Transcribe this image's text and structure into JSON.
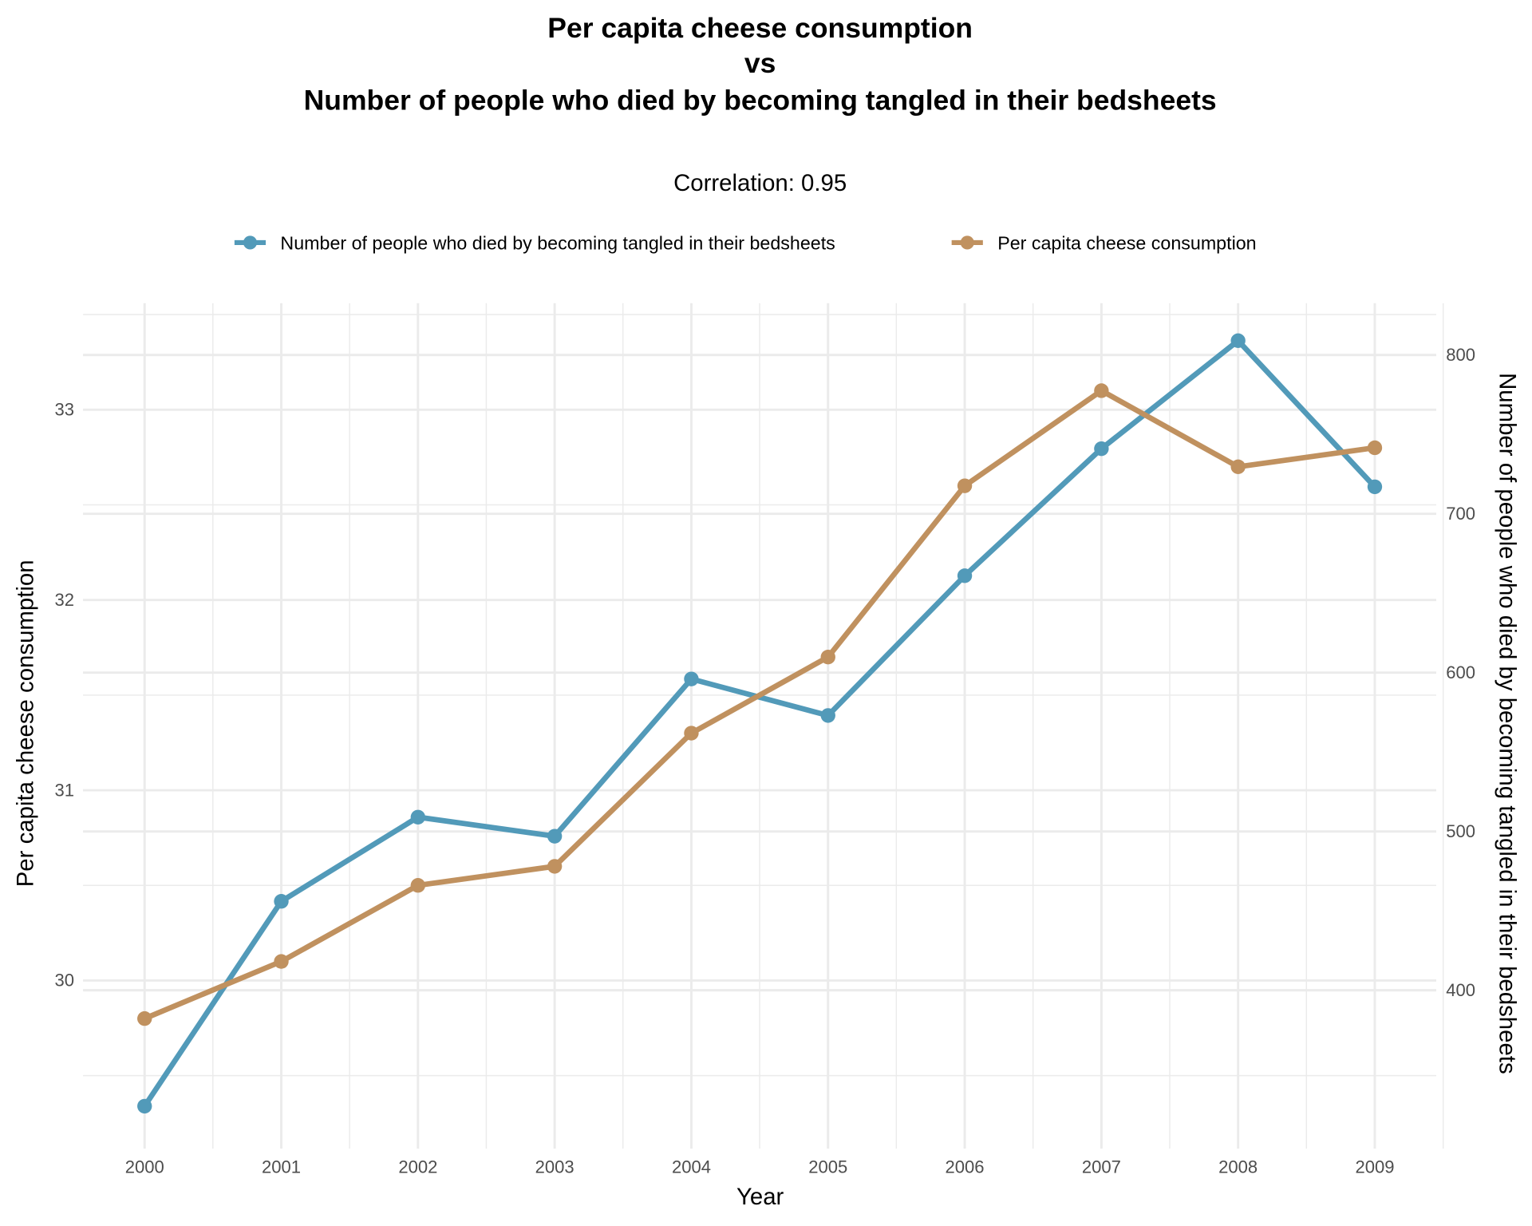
{
  "chart_data": {
    "type": "line",
    "title_lines": [
      "Per capita cheese consumption",
      "vs",
      "Number of people who died by becoming tangled in their bedsheets"
    ],
    "subtitle": "Correlation: 0.95",
    "xlabel": "Year",
    "ylabel_left": "Per capita cheese consumption",
    "ylabel_right": "Number of people who died by becoming tangled in their bedsheets",
    "x": [
      2000,
      2001,
      2002,
      2003,
      2004,
      2005,
      2006,
      2007,
      2008,
      2009
    ],
    "x_tick_labels": [
      "2000",
      "2001",
      "2002",
      "2003",
      "2004",
      "2005",
      "2006",
      "2007",
      "2008",
      "2009"
    ],
    "left_ticks": [
      "30",
      "31",
      "32",
      "33"
    ],
    "right_ticks": [
      "400",
      "500",
      "600",
      "700",
      "800"
    ],
    "ylim_left": [
      29.35,
      33.55
    ],
    "ylim_right": [
      293,
      830
    ],
    "grid": true,
    "legend_position": "top",
    "series": [
      {
        "name": "Number of people who died by becoming tangled in their bedsheets",
        "axis": "right",
        "color": "#529ab9",
        "values": [
          327,
          456,
          509,
          497,
          596,
          573,
          661,
          741,
          809,
          717
        ]
      },
      {
        "name": "Per capita cheese consumption",
        "axis": "left",
        "color": "#c0915f",
        "values": [
          29.8,
          30.1,
          30.5,
          30.6,
          31.3,
          31.7,
          32.6,
          33.1,
          32.7,
          32.8
        ]
      }
    ]
  }
}
